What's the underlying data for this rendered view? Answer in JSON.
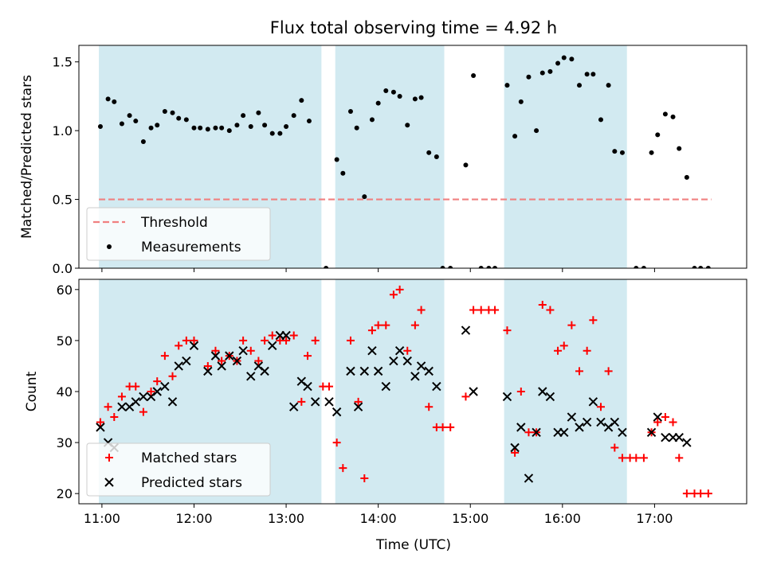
{
  "colors": {
    "observing_band": "#add8e6",
    "threshold": "#f08080",
    "measurement": "#000000",
    "matched": "#ff0000",
    "predicted": "#000000"
  },
  "chart_data": [
    {
      "type": "scatter",
      "title": "Flux total observing time = 4.92 h",
      "xlabel": "",
      "ylabel": "Matched/Predicted stars",
      "xlim": [
        "10:45",
        "18:00"
      ],
      "ylim": [
        0,
        1.62
      ],
      "xticks": [
        "11:00",
        "12:00",
        "13:00",
        "14:00",
        "15:00",
        "16:00",
        "17:00"
      ],
      "yticks": [
        0.0,
        0.5,
        1.0,
        1.5
      ],
      "ytick_labels": [
        "0.0",
        "0.5",
        "1.0",
        "1.5"
      ],
      "shaded_intervals": [
        [
          "10:58",
          "13:23"
        ],
        [
          "13:32",
          "14:43"
        ],
        [
          "15:22",
          "16:42"
        ]
      ],
      "threshold": {
        "name": "Threshold",
        "y": 0.5,
        "x_range": [
          "10:58",
          "17:37"
        ],
        "style": "dashed"
      },
      "legend": {
        "placement": "lower-left",
        "entries": [
          "Threshold",
          "Measurements"
        ]
      },
      "series": [
        {
          "name": "Measurements",
          "marker": "dot",
          "points": [
            [
              "10:59",
              1.03
            ],
            [
              "11:04",
              1.23
            ],
            [
              "11:08",
              1.21
            ],
            [
              "11:13",
              1.05
            ],
            [
              "11:18",
              1.11
            ],
            [
              "11:22",
              1.07
            ],
            [
              "11:27",
              0.92
            ],
            [
              "11:32",
              1.02
            ],
            [
              "11:36",
              1.04
            ],
            [
              "11:41",
              1.14
            ],
            [
              "11:46",
              1.13
            ],
            [
              "11:50",
              1.09
            ],
            [
              "11:55",
              1.08
            ],
            [
              "12:00",
              1.02
            ],
            [
              "12:04",
              1.02
            ],
            [
              "12:09",
              1.01
            ],
            [
              "12:14",
              1.02
            ],
            [
              "12:18",
              1.02
            ],
            [
              "12:23",
              1.0
            ],
            [
              "12:28",
              1.04
            ],
            [
              "12:32",
              1.11
            ],
            [
              "12:37",
              1.03
            ],
            [
              "12:42",
              1.13
            ],
            [
              "12:46",
              1.04
            ],
            [
              "12:51",
              0.98
            ],
            [
              "12:56",
              0.98
            ],
            [
              "13:00",
              1.03
            ],
            [
              "13:05",
              1.11
            ],
            [
              "13:10",
              1.22
            ],
            [
              "13:15",
              1.07
            ],
            [
              "13:26",
              0.0
            ],
            [
              "13:33",
              0.79
            ],
            [
              "13:37",
              0.69
            ],
            [
              "13:42",
              1.14
            ],
            [
              "13:46",
              1.02
            ],
            [
              "13:51",
              0.52
            ],
            [
              "13:56",
              1.08
            ],
            [
              "14:00",
              1.2
            ],
            [
              "14:05",
              1.29
            ],
            [
              "14:10",
              1.28
            ],
            [
              "14:14",
              1.25
            ],
            [
              "14:19",
              1.04
            ],
            [
              "14:24",
              1.23
            ],
            [
              "14:28",
              1.24
            ],
            [
              "14:33",
              0.84
            ],
            [
              "14:38",
              0.81
            ],
            [
              "14:42",
              0.0
            ],
            [
              "14:47",
              0.0
            ],
            [
              "14:57",
              0.75
            ],
            [
              "15:02",
              1.4
            ],
            [
              "15:07",
              0.0
            ],
            [
              "15:12",
              0.0
            ],
            [
              "15:16",
              0.0
            ],
            [
              "15:24",
              1.33
            ],
            [
              "15:29",
              0.96
            ],
            [
              "15:33",
              1.21
            ],
            [
              "15:38",
              1.39
            ],
            [
              "15:43",
              1.0
            ],
            [
              "15:47",
              1.42
            ],
            [
              "15:52",
              1.43
            ],
            [
              "15:57",
              1.49
            ],
            [
              "16:01",
              1.53
            ],
            [
              "16:06",
              1.52
            ],
            [
              "16:11",
              1.33
            ],
            [
              "16:16",
              1.41
            ],
            [
              "16:20",
              1.41
            ],
            [
              "16:25",
              1.08
            ],
            [
              "16:30",
              1.33
            ],
            [
              "16:34",
              0.85
            ],
            [
              "16:39",
              0.84
            ],
            [
              "16:48",
              0.0
            ],
            [
              "16:53",
              0.0
            ],
            [
              "16:58",
              0.84
            ],
            [
              "17:02",
              0.97
            ],
            [
              "17:07",
              1.12
            ],
            [
              "17:12",
              1.1
            ],
            [
              "17:16",
              0.87
            ],
            [
              "17:21",
              0.66
            ],
            [
              "17:26",
              0.0
            ],
            [
              "17:30",
              0.0
            ],
            [
              "17:35",
              0.0
            ]
          ]
        }
      ]
    },
    {
      "type": "scatter",
      "title": "",
      "xlabel": "Time (UTC)",
      "ylabel": "Count",
      "xlim": [
        "10:45",
        "18:00"
      ],
      "ylim": [
        18,
        62
      ],
      "xticks": [
        "11:00",
        "12:00",
        "13:00",
        "14:00",
        "15:00",
        "16:00",
        "17:00"
      ],
      "yticks": [
        20,
        30,
        40,
        50,
        60
      ],
      "ytick_labels": [
        "20",
        "30",
        "40",
        "50",
        "60"
      ],
      "shaded_intervals": [
        [
          "10:58",
          "13:23"
        ],
        [
          "13:32",
          "14:43"
        ],
        [
          "15:22",
          "16:42"
        ]
      ],
      "legend": {
        "placement": "lower-left",
        "entries": [
          "Matched stars",
          "Predicted stars"
        ]
      },
      "series": [
        {
          "name": "Matched stars",
          "marker": "plus",
          "points": [
            [
              "10:59",
              34
            ],
            [
              "11:04",
              37
            ],
            [
              "11:08",
              35
            ],
            [
              "11:13",
              39
            ],
            [
              "11:18",
              41
            ],
            [
              "11:22",
              41
            ],
            [
              "11:27",
              36
            ],
            [
              "11:32",
              40
            ],
            [
              "11:36",
              42
            ],
            [
              "11:41",
              47
            ],
            [
              "11:46",
              43
            ],
            [
              "11:50",
              49
            ],
            [
              "11:55",
              50
            ],
            [
              "12:00",
              50
            ],
            [
              "12:09",
              45
            ],
            [
              "12:14",
              48
            ],
            [
              "12:18",
              46
            ],
            [
              "12:23",
              47
            ],
            [
              "12:28",
              46
            ],
            [
              "12:32",
              50
            ],
            [
              "12:37",
              48
            ],
            [
              "12:42",
              46
            ],
            [
              "12:46",
              50
            ],
            [
              "12:51",
              51
            ],
            [
              "12:56",
              50
            ],
            [
              "13:00",
              50
            ],
            [
              "13:05",
              51
            ],
            [
              "13:10",
              38
            ],
            [
              "13:14",
              47
            ],
            [
              "13:19",
              50
            ],
            [
              "13:24",
              41
            ],
            [
              "13:28",
              41
            ],
            [
              "13:33",
              30
            ],
            [
              "13:37",
              25
            ],
            [
              "13:42",
              50
            ],
            [
              "13:47",
              38
            ],
            [
              "13:51",
              23
            ],
            [
              "13:56",
              52
            ],
            [
              "14:00",
              53
            ],
            [
              "14:05",
              53
            ],
            [
              "14:10",
              59
            ],
            [
              "14:14",
              60
            ],
            [
              "14:19",
              48
            ],
            [
              "14:24",
              53
            ],
            [
              "14:28",
              56
            ],
            [
              "14:33",
              37
            ],
            [
              "14:38",
              33
            ],
            [
              "14:42",
              33
            ],
            [
              "14:47",
              33
            ],
            [
              "14:57",
              39
            ],
            [
              "15:02",
              56
            ],
            [
              "15:07",
              56
            ],
            [
              "15:12",
              56
            ],
            [
              "15:16",
              56
            ],
            [
              "15:24",
              52
            ],
            [
              "15:29",
              28
            ],
            [
              "15:33",
              40
            ],
            [
              "15:38",
              32
            ],
            [
              "15:43",
              32
            ],
            [
              "15:47",
              57
            ],
            [
              "15:52",
              56
            ],
            [
              "15:57",
              48
            ],
            [
              "16:01",
              49
            ],
            [
              "16:06",
              53
            ],
            [
              "16:11",
              44
            ],
            [
              "16:16",
              48
            ],
            [
              "16:20",
              54
            ],
            [
              "16:25",
              37
            ],
            [
              "16:30",
              44
            ],
            [
              "16:34",
              29
            ],
            [
              "16:39",
              27
            ],
            [
              "16:44",
              27
            ],
            [
              "16:48",
              27
            ],
            [
              "16:53",
              27
            ],
            [
              "16:58",
              32
            ],
            [
              "17:02",
              34
            ],
            [
              "17:07",
              35
            ],
            [
              "17:12",
              34
            ],
            [
              "17:16",
              27
            ],
            [
              "17:21",
              20
            ],
            [
              "17:26",
              20
            ],
            [
              "17:30",
              20
            ],
            [
              "17:35",
              20
            ]
          ]
        },
        {
          "name": "Predicted stars",
          "marker": "x",
          "points": [
            [
              "10:59",
              33
            ],
            [
              "11:04",
              30
            ],
            [
              "11:08",
              29
            ],
            [
              "11:13",
              37
            ],
            [
              "11:18",
              37
            ],
            [
              "11:22",
              38
            ],
            [
              "11:27",
              39
            ],
            [
              "11:32",
              39
            ],
            [
              "11:36",
              40
            ],
            [
              "11:41",
              41
            ],
            [
              "11:46",
              38
            ],
            [
              "11:50",
              45
            ],
            [
              "11:55",
              46
            ],
            [
              "12:00",
              49
            ],
            [
              "12:09",
              44
            ],
            [
              "12:14",
              47
            ],
            [
              "12:18",
              45
            ],
            [
              "12:23",
              47
            ],
            [
              "12:28",
              46
            ],
            [
              "12:32",
              48
            ],
            [
              "12:37",
              43
            ],
            [
              "12:42",
              45
            ],
            [
              "12:46",
              44
            ],
            [
              "12:51",
              49
            ],
            [
              "12:56",
              51
            ],
            [
              "13:00",
              51
            ],
            [
              "13:05",
              37
            ],
            [
              "13:10",
              42
            ],
            [
              "13:14",
              41
            ],
            [
              "13:19",
              38
            ],
            [
              "13:28",
              38
            ],
            [
              "13:33",
              36
            ],
            [
              "13:42",
              44
            ],
            [
              "13:47",
              37
            ],
            [
              "13:51",
              44
            ],
            [
              "13:56",
              48
            ],
            [
              "14:00",
              44
            ],
            [
              "14:05",
              41
            ],
            [
              "14:10",
              46
            ],
            [
              "14:14",
              48
            ],
            [
              "14:19",
              46
            ],
            [
              "14:24",
              43
            ],
            [
              "14:28",
              45
            ],
            [
              "14:33",
              44
            ],
            [
              "14:38",
              41
            ],
            [
              "14:57",
              52
            ],
            [
              "15:02",
              40
            ],
            [
              "15:24",
              39
            ],
            [
              "15:29",
              29
            ],
            [
              "15:33",
              33
            ],
            [
              "15:38",
              23
            ],
            [
              "15:43",
              32
            ],
            [
              "15:47",
              40
            ],
            [
              "15:52",
              39
            ],
            [
              "15:57",
              32
            ],
            [
              "16:01",
              32
            ],
            [
              "16:06",
              35
            ],
            [
              "16:11",
              33
            ],
            [
              "16:16",
              34
            ],
            [
              "16:20",
              38
            ],
            [
              "16:25",
              34
            ],
            [
              "16:30",
              33
            ],
            [
              "16:34",
              34
            ],
            [
              "16:39",
              32
            ],
            [
              "16:58",
              32
            ],
            [
              "17:02",
              35
            ],
            [
              "17:07",
              31
            ],
            [
              "17:12",
              31
            ],
            [
              "17:16",
              31
            ],
            [
              "17:21",
              30
            ]
          ]
        }
      ]
    }
  ]
}
